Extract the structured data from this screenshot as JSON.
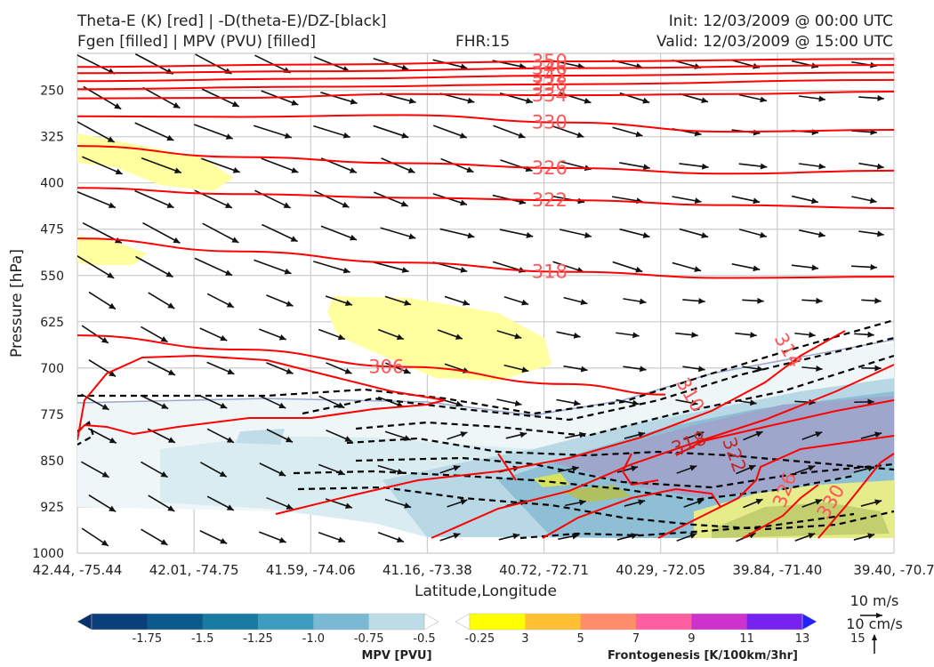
{
  "header": {
    "line1_left": "Theta-E (K) [red] | -D(theta-E)/DZ-[black]",
    "line2_left": "Fgen [filled] | MPV (PVU) [filled]",
    "fhr": "FHR:15",
    "init": "Init: 12/03/2009 @ 00:00 UTC",
    "valid": "Valid: 12/03/2009 @ 15:00 UTC"
  },
  "chart_data": {
    "type": "cross-section",
    "ylabel": "Pressure [hPa]",
    "xlabel": "Latitude,Longitude",
    "y_axis": {
      "range": [
        1000,
        190
      ],
      "reversed": true,
      "ticks": [
        250,
        325,
        400,
        475,
        550,
        625,
        700,
        775,
        850,
        925,
        1000
      ]
    },
    "x_axis": {
      "ticks": [
        "42.44, -75.44",
        "42.01, -74.75",
        "41.59, -74.06",
        "41.16, -73.38",
        "40.72, -72.71",
        "40.29, -72.05",
        "39.84, -71.40",
        "39.40, -70.7"
      ]
    },
    "theta_e_contours": [
      {
        "value": 350,
        "label": "350",
        "points": [
          [
            0,
            212
          ],
          [
            0.3,
            208
          ],
          [
            0.6,
            203
          ],
          [
            1,
            199
          ]
        ]
      },
      {
        "value": 346,
        "label": "346",
        "points": [
          [
            0,
            222
          ],
          [
            0.3,
            219
          ],
          [
            0.6,
            214
          ],
          [
            1,
            209
          ]
        ]
      },
      {
        "value": 342,
        "label": "342",
        "points": [
          [
            0,
            235
          ],
          [
            0.3,
            231
          ],
          [
            0.6,
            226
          ],
          [
            1,
            221
          ]
        ]
      },
      {
        "value": 338,
        "label": "338",
        "points": [
          [
            0,
            248
          ],
          [
            0.3,
            244
          ],
          [
            0.6,
            240
          ],
          [
            1,
            233
          ]
        ]
      },
      {
        "value": 334,
        "label": "334",
        "points": [
          [
            0,
            263
          ],
          [
            0.2,
            262
          ],
          [
            0.4,
            256
          ],
          [
            0.6,
            258
          ],
          [
            0.8,
            256
          ],
          [
            1,
            252
          ]
        ]
      },
      {
        "value": 330,
        "label": "330",
        "points": [
          [
            0,
            292
          ],
          [
            0.2,
            293
          ],
          [
            0.4,
            290
          ],
          [
            0.6,
            302
          ],
          [
            0.8,
            317
          ],
          [
            1,
            314
          ]
        ]
      },
      {
        "value": 326,
        "label": "326",
        "points": [
          [
            0,
            340
          ],
          [
            0.2,
            358
          ],
          [
            0.4,
            368
          ],
          [
            0.6,
            376
          ],
          [
            0.8,
            385
          ],
          [
            1,
            380
          ]
        ]
      },
      {
        "value": 322,
        "label": "322",
        "points": [
          [
            0,
            408
          ],
          [
            0.2,
            418
          ],
          [
            0.4,
            424
          ],
          [
            0.6,
            428
          ],
          [
            0.8,
            436
          ],
          [
            1,
            441
          ]
        ]
      },
      {
        "value": 318,
        "label": "318",
        "points": [
          [
            0,
            490
          ],
          [
            0.2,
            511
          ],
          [
            0.4,
            529
          ],
          [
            0.6,
            544
          ],
          [
            0.8,
            554
          ],
          [
            1,
            552
          ]
        ]
      },
      {
        "value": 306,
        "label": "306",
        "points": [
          [
            0,
            647
          ],
          [
            0.2,
            670
          ],
          [
            0.4,
            698
          ],
          [
            0.6,
            726
          ],
          [
            0.72,
            743
          ]
        ]
      }
    ],
    "dtheta_contours": 6,
    "mpv_levels": [
      -1.75,
      -1.5,
      -1.25,
      -1.0,
      -0.75,
      -0.5,
      -0.25
    ],
    "fgen_levels": [
      3,
      5,
      7,
      9,
      11,
      13,
      15
    ],
    "colorbars": [
      {
        "label": "MPV [PVU]",
        "ticks": [
          "-1.75",
          "-1.5",
          "-1.25",
          "-1.0",
          "-0.75",
          "-0.5",
          "-0.25"
        ],
        "colors": [
          "#08306b",
          "#0a3f7a",
          "#0b5a8a",
          "#1a7ba2",
          "#3e9cc0",
          "#7ab9d3",
          "#bcdde8",
          "#ffffff"
        ]
      },
      {
        "label": "Frontogenesis [K/100km/3hr]",
        "ticks": [
          "3",
          "5",
          "7",
          "9",
          "11",
          "13",
          "15"
        ],
        "colors": [
          "#ffffff",
          "#ffff00",
          "#ffc033",
          "#ff8c6a",
          "#ff5fa0",
          "#cc33cc",
          "#7722ee",
          "#2222ff"
        ]
      }
    ],
    "vector_keys": [
      "10 m/s",
      "10 cm/s"
    ],
    "grid": true
  },
  "colors": {
    "theta_e": "#ff0000",
    "theta_e_label": "#ff5555",
    "dtheta": "#000000",
    "wind": "#111111"
  }
}
